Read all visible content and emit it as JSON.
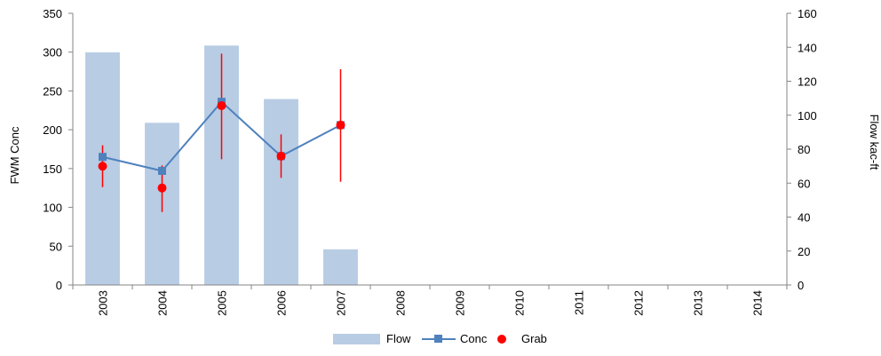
{
  "chart_data": {
    "type": "bar",
    "categories": [
      "2003",
      "2004",
      "2005",
      "2006",
      "2007",
      "2008",
      "2009",
      "2010",
      "2011",
      "2012",
      "2013",
      "2014"
    ],
    "ylabel": "FWM Conc",
    "y2label": "Flow kac-ft",
    "ylim": [
      0,
      350
    ],
    "y2lim": [
      0,
      160
    ],
    "yticks": [
      "0",
      "50",
      "100",
      "150",
      "200",
      "250",
      "300",
      "350"
    ],
    "y2ticks": [
      "0",
      "20",
      "40",
      "60",
      "80",
      "100",
      "120",
      "140",
      "160"
    ],
    "grid": false,
    "legend_placement": "bottom-center",
    "series": [
      {
        "name": "Flow",
        "type": "bar",
        "axis": "right",
        "color": "#b8cce4",
        "values": [
          137,
          95.5,
          141,
          109.5,
          21,
          null,
          null,
          null,
          null,
          null,
          null,
          null
        ]
      },
      {
        "name": "Conc",
        "type": "line",
        "axis": "left",
        "color": "#4f81bd",
        "values": [
          165,
          147,
          236,
          166,
          206,
          null,
          null,
          null,
          null,
          null,
          null,
          null
        ]
      },
      {
        "name": "Grab",
        "type": "scatter",
        "axis": "left",
        "color": "#ff0000",
        "values": [
          153,
          125,
          231,
          166,
          206,
          null,
          null,
          null,
          null,
          null,
          null,
          null
        ],
        "error_low": [
          126,
          94,
          162,
          138,
          133,
          null,
          null,
          null,
          null,
          null,
          null,
          null
        ],
        "error_high": [
          180,
          154,
          298,
          194,
          278,
          null,
          null,
          null,
          null,
          null,
          null,
          null
        ]
      }
    ]
  }
}
